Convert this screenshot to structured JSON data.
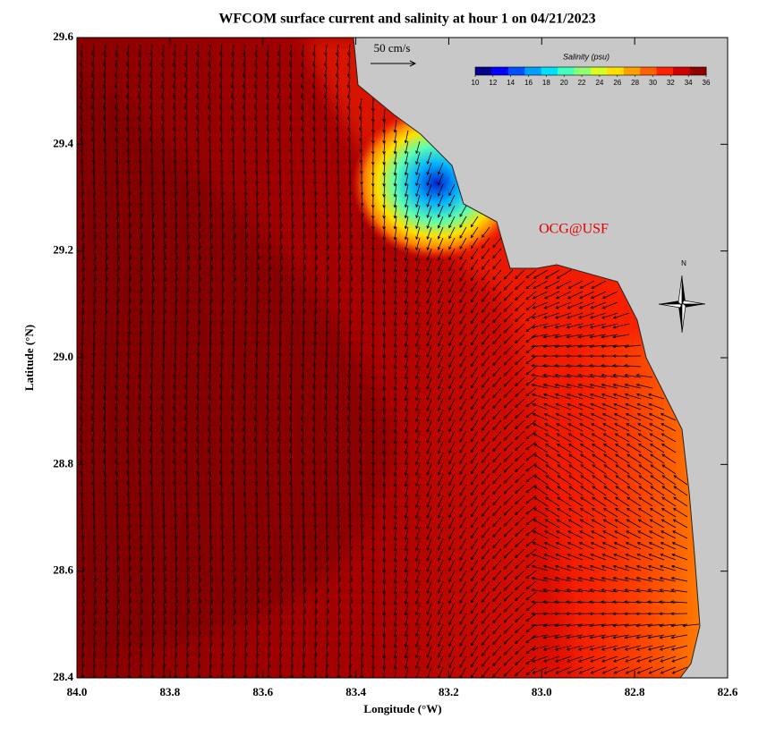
{
  "chart_data": {
    "type": "map",
    "title": "WFCOM surface current and salinity at hour 1 on 04/21/2023",
    "x_label": "Longitude (°W)",
    "y_label": "Latitude (°N)",
    "xlim": [
      84.0,
      82.6
    ],
    "ylim": [
      28.4,
      29.6
    ],
    "xticks": [
      {
        "value": 84.0,
        "label": "84.0"
      },
      83.8,
      83.6,
      83.4,
      83.2,
      {
        "value": 83.0,
        "label": "83.0"
      },
      82.8,
      82.6
    ],
    "yticks": [
      28.4,
      28.6,
      28.8,
      {
        "value": 29.0,
        "label": "29.0"
      },
      29.2,
      29.4,
      29.6
    ],
    "scale_label": "50 cm/s",
    "annotation": "OCG@USF",
    "compass_label": "N",
    "colorbar": {
      "title": "Salinity (psu)",
      "lim": [
        10,
        36
      ],
      "ticks": [
        10,
        12,
        14,
        16,
        18,
        20,
        22,
        24,
        26,
        28,
        30,
        32,
        34,
        36
      ],
      "colors": [
        "#00008f",
        "#0000ff",
        "#0050ff",
        "#00a0ff",
        "#00e0ff",
        "#40ffc0",
        "#90ff70",
        "#d8ff20",
        "#ffe000",
        "#ffa000",
        "#ff6000",
        "#ff2000",
        "#d00000",
        "#900000"
      ]
    }
  }
}
